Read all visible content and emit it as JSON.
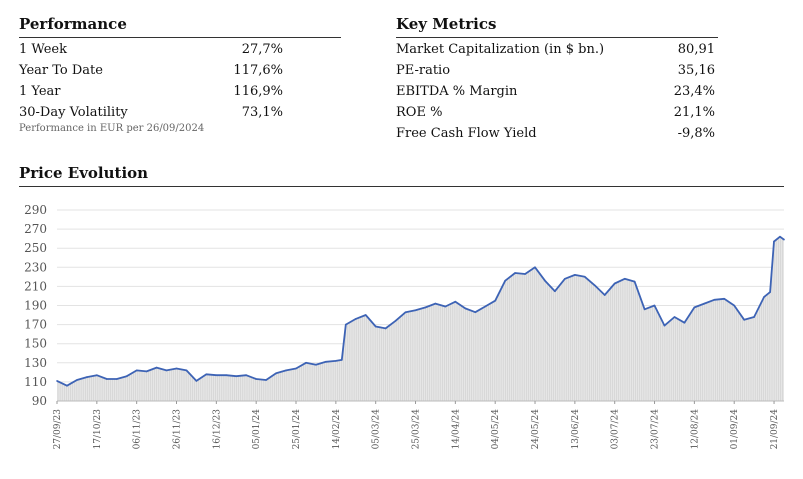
{
  "performance": {
    "title": "Performance",
    "rows": [
      {
        "label": "1 Week",
        "value": "27,7%"
      },
      {
        "label": "Year To Date",
        "value": "117,6%"
      },
      {
        "label": "1 Year",
        "value": "116,9%"
      },
      {
        "label": "30-Day Volatility",
        "value": "73,1%"
      }
    ],
    "note": "Performance in EUR per 26/09/2024"
  },
  "metrics": {
    "title": "Key Metrics",
    "rows": [
      {
        "label": "Market Capitalization (in $ bn.)",
        "value": "80,91"
      },
      {
        "label": "PE-ratio",
        "value": "35,16"
      },
      {
        "label": "EBITDA % Margin",
        "value": "23,4%"
      },
      {
        "label": "ROE %",
        "value": "21,1%"
      },
      {
        "label": "Free Cash Flow Yield",
        "value": "-9,8%"
      }
    ]
  },
  "price": {
    "title": "Price Evolution"
  },
  "colors": {
    "line": "#3d63b5",
    "fill": "#e6e6e6",
    "bars": "#cfcfcf"
  },
  "chart_data": {
    "type": "area",
    "yticks": [
      90,
      110,
      130,
      150,
      170,
      190,
      210,
      230,
      250,
      270,
      290
    ],
    "ylim": [
      90,
      290
    ],
    "xticks": [
      "27/09/23",
      "17/10/23",
      "06/11/23",
      "26/11/23",
      "16/12/23",
      "05/01/24",
      "25/01/24",
      "14/02/24",
      "05/03/24",
      "25/03/24",
      "14/04/24",
      "04/05/24",
      "24/05/24",
      "13/06/24",
      "03/07/24",
      "23/07/24",
      "12/08/24",
      "01/09/24",
      "21/09/24"
    ],
    "x": [
      "27/09/23",
      "02/10/23",
      "07/10/23",
      "12/10/23",
      "17/10/23",
      "22/10/23",
      "27/10/23",
      "01/11/23",
      "06/11/23",
      "11/11/23",
      "16/11/23",
      "21/11/23",
      "26/11/23",
      "01/12/23",
      "06/12/23",
      "11/12/23",
      "16/12/23",
      "21/12/23",
      "26/12/23",
      "31/12/23",
      "05/01/24",
      "10/01/24",
      "15/01/24",
      "20/01/24",
      "25/01/24",
      "30/01/24",
      "04/02/24",
      "09/02/24",
      "14/02/24",
      "17/02/24",
      "19/02/24",
      "24/02/24",
      "29/02/24",
      "05/03/24",
      "10/03/24",
      "15/03/24",
      "20/03/24",
      "25/03/24",
      "30/03/24",
      "04/04/24",
      "09/04/24",
      "14/04/24",
      "19/04/24",
      "24/04/24",
      "29/04/24",
      "04/05/24",
      "09/05/24",
      "14/05/24",
      "19/05/24",
      "24/05/24",
      "29/05/24",
      "03/06/24",
      "08/06/24",
      "13/06/24",
      "18/06/24",
      "23/06/24",
      "28/06/24",
      "03/07/24",
      "08/07/24",
      "13/07/24",
      "18/07/24",
      "23/07/24",
      "28/07/24",
      "02/08/24",
      "07/08/24",
      "12/08/24",
      "17/08/24",
      "22/08/24",
      "27/08/24",
      "01/09/24",
      "06/09/24",
      "11/09/24",
      "16/09/24",
      "19/09/24",
      "21/09/24",
      "24/09/24",
      "26/09/24"
    ],
    "values": [
      111,
      106,
      112,
      115,
      117,
      113,
      113,
      116,
      122,
      121,
      125,
      122,
      124,
      122,
      111,
      118,
      117,
      117,
      116,
      117,
      113,
      112,
      119,
      122,
      124,
      130,
      128,
      131,
      132,
      133,
      170,
      176,
      180,
      168,
      166,
      174,
      183,
      185,
      188,
      192,
      189,
      194,
      187,
      183,
      189,
      195,
      216,
      224,
      223,
      230,
      216,
      205,
      218,
      222,
      220,
      211,
      201,
      213,
      218,
      215,
      186,
      190,
      169,
      178,
      172,
      188,
      192,
      196,
      197,
      190,
      175,
      178,
      199,
      204,
      257,
      262,
      259
    ]
  }
}
